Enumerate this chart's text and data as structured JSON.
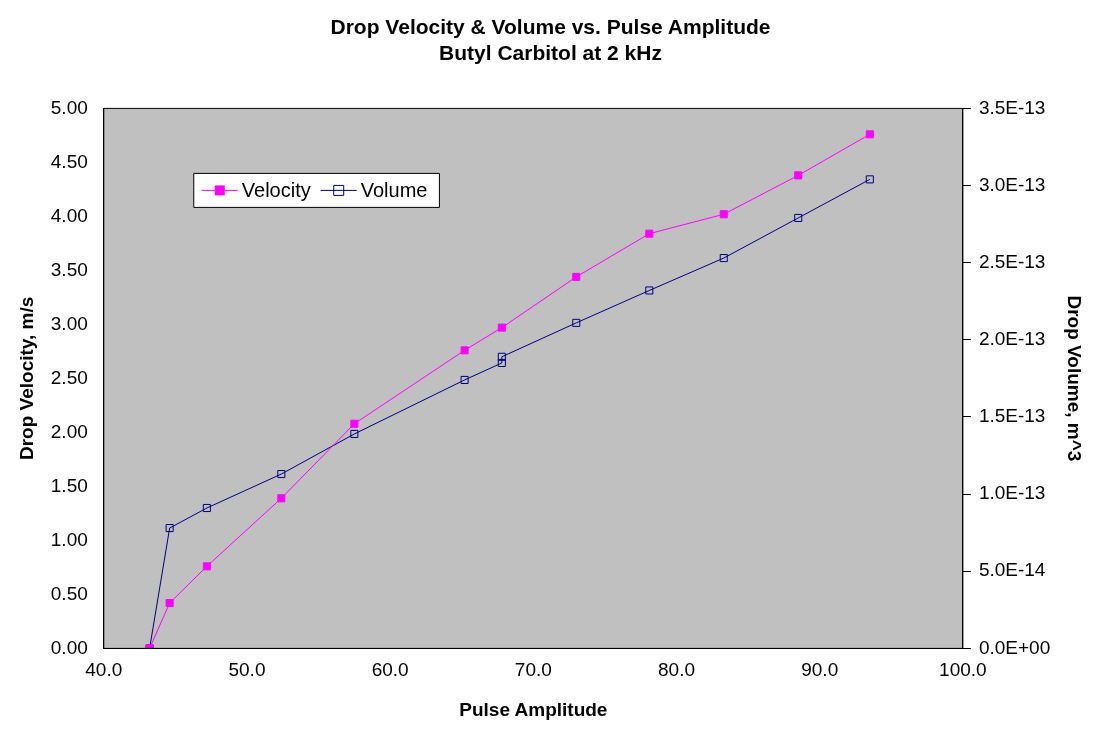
{
  "chart_data": {
    "type": "line",
    "title": "Drop Velocity & Volume vs. Pulse Amplitude",
    "subtitle": "Butyl Carbitol at 2 kHz",
    "xlabel": "Pulse Amplitude",
    "ylabel": "Drop Velocity, m/s",
    "y2label": "Drop Volume, m^3",
    "xlim": [
      40,
      100
    ],
    "xticks": [
      {
        "value": 40,
        "label": "40.0"
      },
      {
        "value": 50,
        "label": "50.0"
      },
      {
        "value": 60,
        "label": "60.0"
      },
      {
        "value": 70,
        "label": "70.0"
      },
      {
        "value": 80,
        "label": "80.0"
      },
      {
        "value": 90,
        "label": "90.0"
      },
      {
        "value": 100,
        "label": "100.0"
      }
    ],
    "ylim": [
      0,
      5
    ],
    "yticks": [
      {
        "value": 0,
        "label": "0.00"
      },
      {
        "value": 0.5,
        "label": "0.50"
      },
      {
        "value": 1,
        "label": "1.00"
      },
      {
        "value": 1.5,
        "label": "1.50"
      },
      {
        "value": 2,
        "label": "2.00"
      },
      {
        "value": 2.5,
        "label": "2.50"
      },
      {
        "value": 3,
        "label": "3.00"
      },
      {
        "value": 3.5,
        "label": "3.50"
      },
      {
        "value": 4,
        "label": "4.00"
      },
      {
        "value": 4.5,
        "label": "4.50"
      },
      {
        "value": 5,
        "label": "5.00"
      }
    ],
    "y2lim": [
      0,
      3.5e-13
    ],
    "y2ticks": [
      {
        "value": 0,
        "label": "0.0E+00"
      },
      {
        "value": 5e-14,
        "label": "5.0E-14"
      },
      {
        "value": 1e-13,
        "label": "1.0E-13"
      },
      {
        "value": 1.5e-13,
        "label": "1.5E-13"
      },
      {
        "value": 2e-13,
        "label": "2.0E-13"
      },
      {
        "value": 2.5e-13,
        "label": "2.5E-13"
      },
      {
        "value": 3e-13,
        "label": "3.0E-13"
      },
      {
        "value": 3.5e-13,
        "label": "3.5E-13"
      }
    ],
    "grid": false,
    "legend": "top left",
    "marker": "square",
    "line_style": "solid",
    "series": [
      {
        "name": "Velocity",
        "color": "#ff00ff",
        "x": [
          43.2,
          44.6,
          47.2,
          52.4,
          57.5,
          65.2,
          67.8,
          73.0,
          78.1,
          83.3,
          88.5,
          93.5
        ],
        "values": [
          0,
          0.42,
          0.76,
          1.39,
          2.08,
          2.76,
          2.97,
          3.44,
          3.84,
          4.02,
          4.38,
          4.76
        ]
      },
      {
        "name": "Volume",
        "color": "#000080",
        "axis": "y2",
        "x": [
          43.2,
          44.6,
          47.2,
          52.4,
          57.5,
          65.2,
          67.8,
          67.8,
          73.0,
          78.1,
          83.3,
          88.5,
          93.5
        ],
        "values": [
          0,
          7.8e-14,
          9.1e-14,
          1.13e-13,
          1.39e-13,
          1.74e-13,
          1.85e-13,
          1.89e-13,
          2.11e-13,
          2.32e-13,
          2.53e-13,
          2.79e-13,
          3.04e-13
        ]
      }
    ]
  }
}
